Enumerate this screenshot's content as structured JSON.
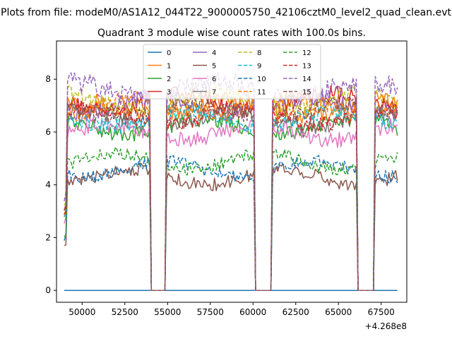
{
  "chart_data": {
    "type": "line",
    "suptitle": "Plots from file: modeM0/AS1A12_044T22_9000005750_42106cztM0_level2_quad_clean.evt",
    "title": "Quadrant 3 module wise count rates with 100.0s bins.",
    "xlabel": "",
    "ylabel": "",
    "x_offset_text": "+4.268e8",
    "xlim": [
      48500,
      69000
    ],
    "ylim": [
      -0.45,
      9.45
    ],
    "xticks": [
      50000,
      52500,
      55000,
      57500,
      60000,
      62500,
      65000,
      67500
    ],
    "xtick_labels": [
      "50000",
      "52500",
      "55000",
      "57500",
      "60000",
      "62500",
      "65000",
      "67500"
    ],
    "yticks": [
      0,
      2,
      4,
      6,
      8
    ],
    "ytick_labels": [
      "0",
      "2",
      "4",
      "6",
      "8"
    ],
    "legend_position": "upper center",
    "x_range": [
      48950,
      68450
    ],
    "bin_seconds": 100,
    "gaps": [
      [
        54000,
        54900
      ],
      [
        60100,
        61100
      ],
      [
        66100,
        67100
      ]
    ],
    "series": [
      {
        "name": "0",
        "color": "#1f77b4",
        "dash": "solid",
        "level": 0.0,
        "amp": 0.0
      },
      {
        "name": "1",
        "color": "#ff7f0e",
        "dash": "solid",
        "level": 6.9,
        "amp": 0.35
      },
      {
        "name": "2",
        "color": "#2ca02c",
        "dash": "solid",
        "level": 6.2,
        "amp": 0.3
      },
      {
        "name": "3",
        "color": "#d62728",
        "dash": "solid",
        "level": 7.1,
        "amp": 0.35
      },
      {
        "name": "4",
        "color": "#9467bd",
        "dash": "solid",
        "level": 7.0,
        "amp": 0.35
      },
      {
        "name": "5",
        "color": "#8c564b",
        "dash": "solid",
        "level": 4.3,
        "amp": 0.25
      },
      {
        "name": "6",
        "color": "#e377c2",
        "dash": "solid",
        "level": 6.0,
        "amp": 0.3
      },
      {
        "name": "7",
        "color": "#7f7f7f",
        "dash": "solid",
        "level": 6.5,
        "amp": 0.3
      },
      {
        "name": "8",
        "color": "#bcbd22",
        "dash": "dashed",
        "level": 7.2,
        "amp": 0.35
      },
      {
        "name": "9",
        "color": "#17becf",
        "dash": "dashed",
        "level": 6.5,
        "amp": 0.3
      },
      {
        "name": "10",
        "color": "#1f77b4",
        "dash": "dashed",
        "level": 4.6,
        "amp": 0.25
      },
      {
        "name": "11",
        "color": "#ff7f0e",
        "dash": "dashed",
        "level": 7.0,
        "amp": 0.35
      },
      {
        "name": "12",
        "color": "#2ca02c",
        "dash": "dashed",
        "level": 4.9,
        "amp": 0.25
      },
      {
        "name": "13",
        "color": "#d62728",
        "dash": "dashed",
        "level": 6.6,
        "amp": 0.3
      },
      {
        "name": "14",
        "color": "#9467bd",
        "dash": "dashed",
        "level": 7.6,
        "amp": 0.4
      },
      {
        "name": "15",
        "color": "#8c564b",
        "dash": "dashed",
        "level": 6.8,
        "amp": 0.3
      }
    ]
  }
}
